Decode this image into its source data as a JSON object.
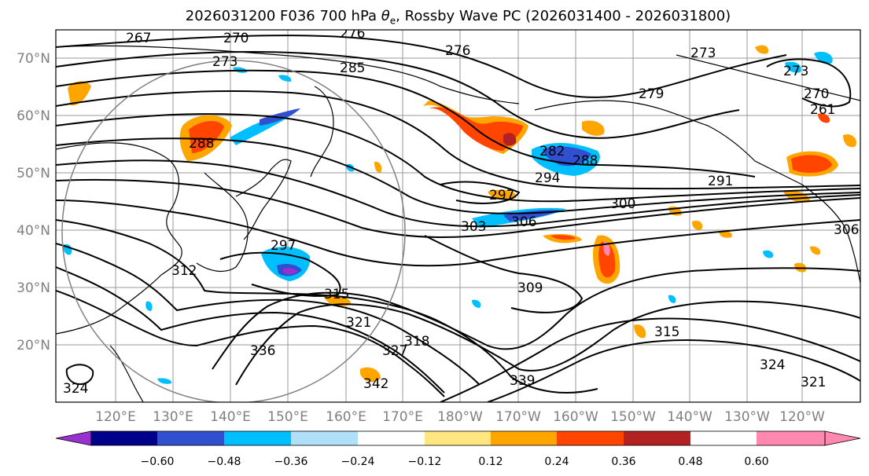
{
  "title": {
    "prefix": "2026031200 F036 700 hPa ",
    "theta": "θ",
    "theta_sub": "e",
    "suffix": ", Rossby Wave PC (2026031400 - 2026031800)"
  },
  "axes": {
    "lat_labels": [
      "70°N",
      "60°N",
      "50°N",
      "40°N",
      "30°N",
      "20°N"
    ],
    "lon_labels": [
      "120°E",
      "130°E",
      "140°E",
      "150°E",
      "160°E",
      "170°E",
      "180°W",
      "170°W",
      "160°W",
      "150°W",
      "140°W",
      "130°W",
      "120°W"
    ]
  },
  "contour_labels": [
    "267",
    "270",
    "273",
    "276",
    "276",
    "273",
    "285",
    "279",
    "273",
    "270",
    "261",
    "288",
    "282",
    "288",
    "294",
    "297",
    "291",
    "300",
    "303",
    "306",
    "309",
    "297",
    "306",
    "312",
    "315",
    "315",
    "318",
    "321",
    "324",
    "327",
    "336",
    "339",
    "342",
    "321",
    "324"
  ],
  "colorbar": {
    "ticks": [
      "−0.60",
      "−0.48",
      "−0.36",
      "−0.24",
      "−0.12",
      "0.12",
      "0.24",
      "0.36",
      "0.48",
      "0.60"
    ],
    "colors": [
      "#9b30d0",
      "#00008b",
      "#3050d0",
      "#00bfff",
      "#b0e0f8",
      "#ffffff",
      "#ffe680",
      "#ffa500",
      "#ff4500",
      "#b22222",
      "#ff88b0"
    ]
  },
  "colors": {
    "grid": "#999999",
    "contour": "#000000",
    "tick": "#808080"
  }
}
